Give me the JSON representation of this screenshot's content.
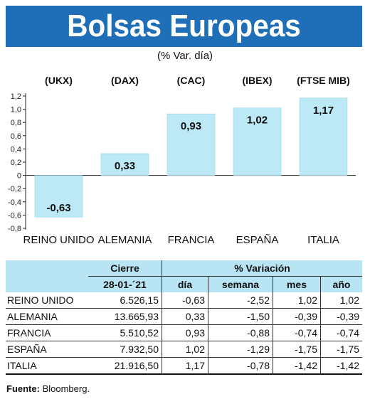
{
  "title": "Bolsas Europeas",
  "subtitle": "(% Var. día)",
  "chart_data": {
    "type": "bar",
    "title": "Bolsas Europeas",
    "subtitle": "(% Var. día)",
    "categories": [
      "REINO UNIDO",
      "ALEMANIA",
      "FRANCIA",
      "ESPAÑA",
      "ITALIA"
    ],
    "indices": [
      "(UKX)",
      "(DAX)",
      "(CAC)",
      "(IBEX)",
      "(FTSE MIB)"
    ],
    "values": [
      -0.63,
      0.33,
      0.93,
      1.02,
      1.17
    ],
    "value_labels": [
      "-0,63",
      "0,33",
      "0,93",
      "1,02",
      "1,17"
    ],
    "ylim": [
      -0.8,
      1.2
    ],
    "yticks": [
      1.2,
      1.0,
      0.8,
      0.6,
      0.4,
      0.2,
      0,
      -0.2,
      -0.4,
      -0.6,
      -0.8
    ],
    "ytick_labels": [
      "1,2",
      "1,0",
      "0,8",
      "0,6",
      "0,4",
      "0,2",
      "0",
      "-0,2",
      "-0,4",
      "-0,6",
      "-0,8"
    ],
    "bar_color": "#bde9f6",
    "grid": false
  },
  "table": {
    "header_cierre": "Cierre",
    "header_variacion": "% Variación",
    "date": "28-01-´21",
    "col_dia": "día",
    "col_semana": "semana",
    "col_mes": "mes",
    "col_ano": "año",
    "rows": [
      {
        "country": "REINO UNIDO",
        "cierre": "6.526,15",
        "dia": "-0,63",
        "semana": "-2,52",
        "mes": "1,02",
        "ano": "1,02"
      },
      {
        "country": "ALEMANIA",
        "cierre": "13.665,93",
        "dia": "0,33",
        "semana": "-1,50",
        "mes": "-0,39",
        "ano": "-0,39"
      },
      {
        "country": "FRANCIA",
        "cierre": "5.510,52",
        "dia": "0,93",
        "semana": "-0,88",
        "mes": "-0,74",
        "ano": "-0,74"
      },
      {
        "country": "ESPAÑA",
        "cierre": "7.932,50",
        "dia": "1,02",
        "semana": "-1,29",
        "mes": "-1,75",
        "ano": "-1,75"
      },
      {
        "country": "ITALIA",
        "cierre": "21.916,50",
        "dia": "1,17",
        "semana": "-0,78",
        "mes": "-1,42",
        "ano": "-1,42"
      }
    ]
  },
  "source_label": "Fuente:",
  "source_value": "Bloomberg."
}
